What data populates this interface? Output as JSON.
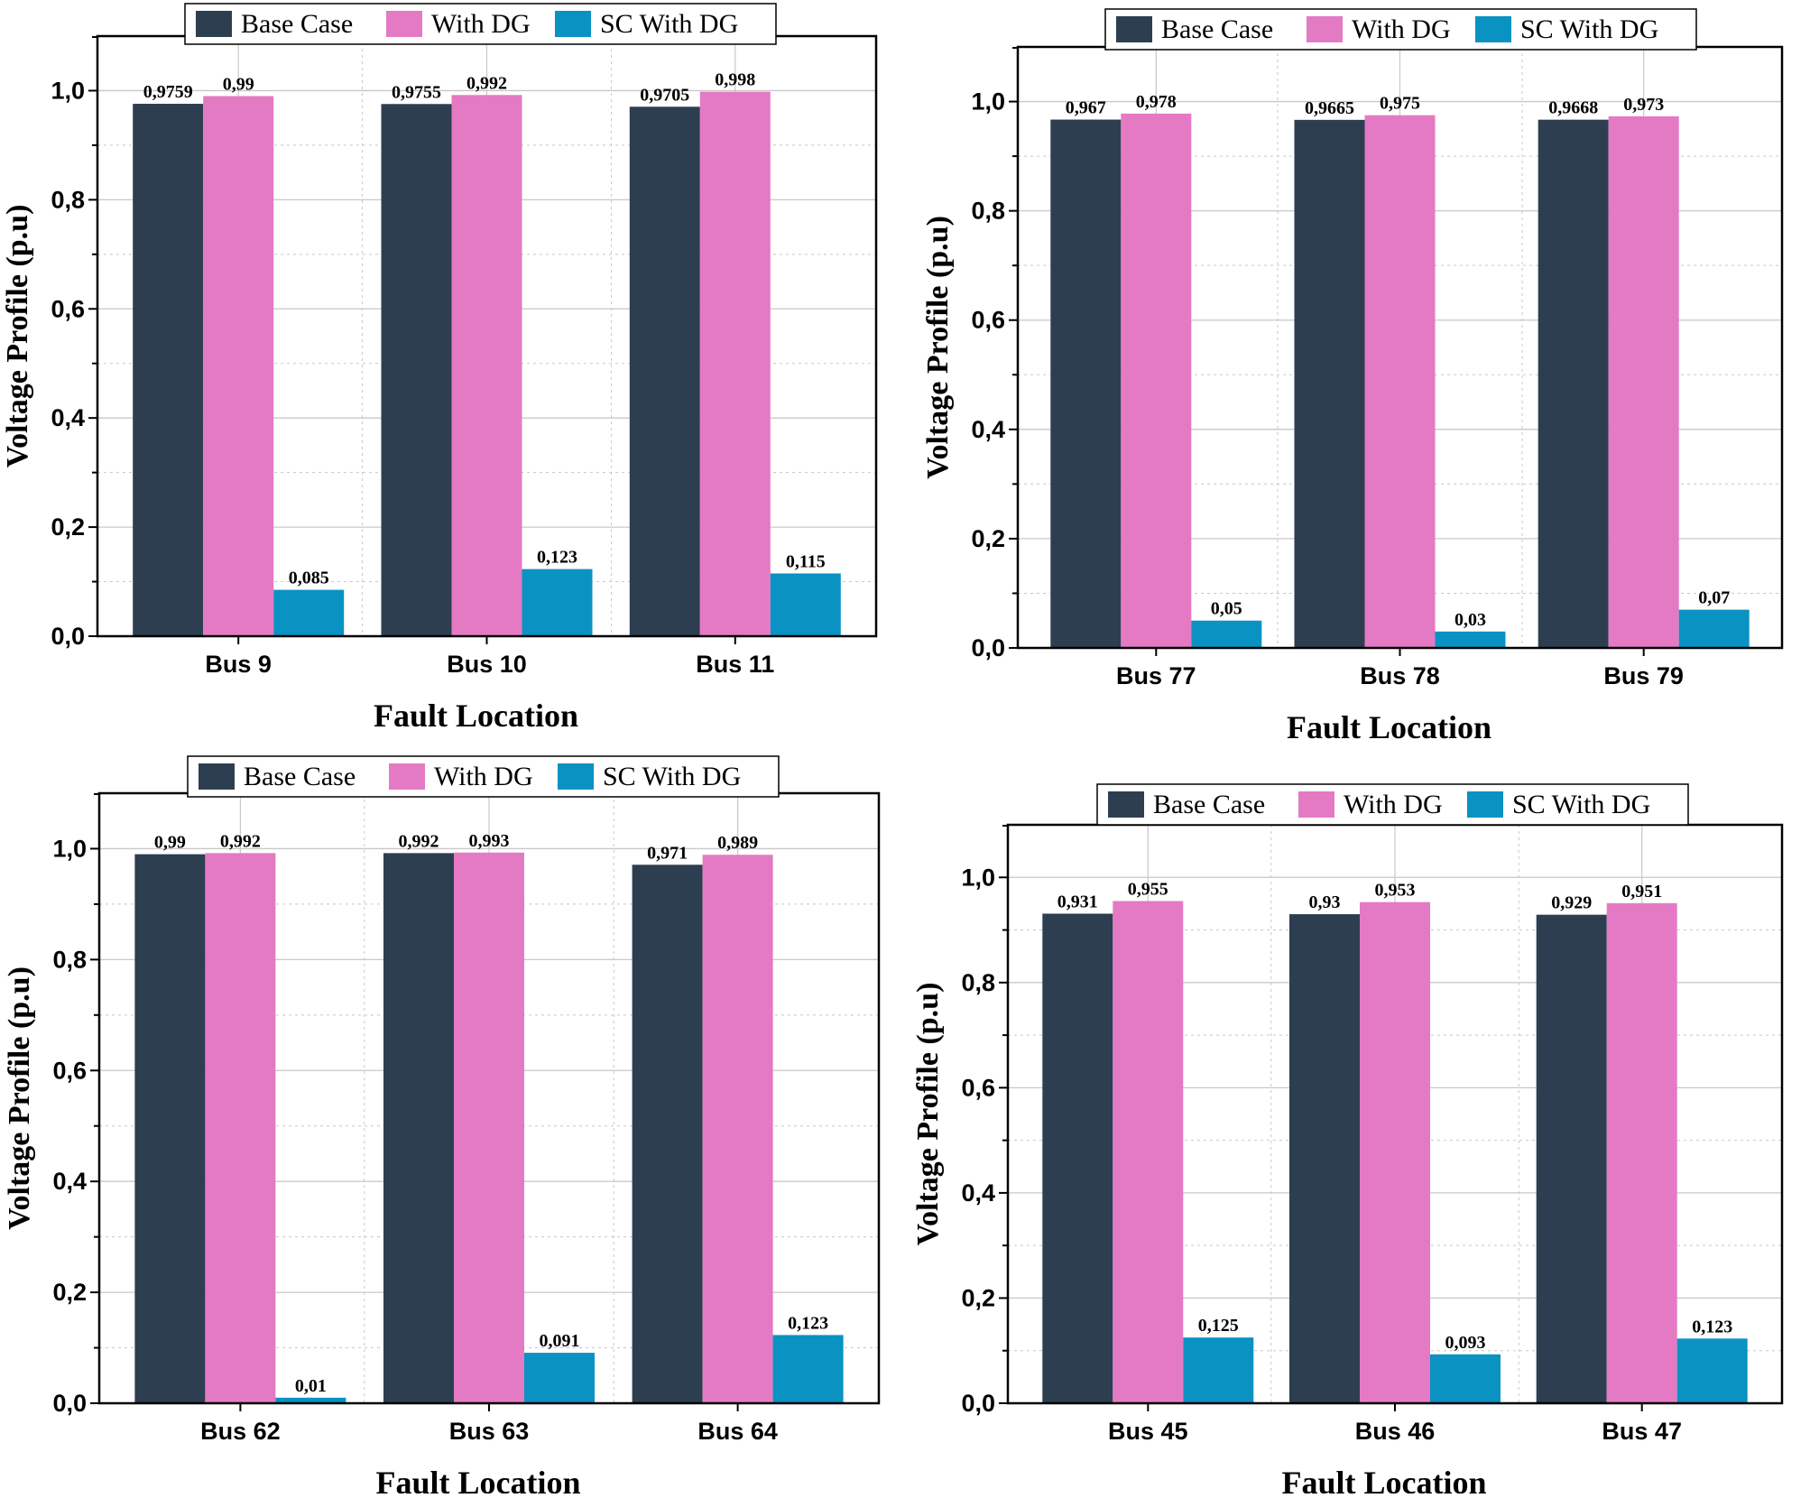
{
  "colors": {
    "base": "#2d3e50",
    "dg": "#e47ac3",
    "sc": "#0a92c2",
    "grid": "#c8c8c8",
    "axis": "#000000"
  },
  "legend_labels": [
    "Base Case",
    "With DG",
    "SC With DG"
  ],
  "chart_data": [
    {
      "type": "bar",
      "title": "",
      "xlabel": "Fault Location",
      "ylabel": "Voltage Profile (p.u)",
      "ylim": [
        0,
        1.1
      ],
      "yticks": [
        "0,0",
        "0,2",
        "0,4",
        "0,6",
        "0,8",
        "1,0"
      ],
      "legend_position": "top",
      "categories": [
        "Bus 9",
        "Bus 10",
        "Bus 11"
      ],
      "series": [
        {
          "name": "Base Case",
          "values": [
            0.9759,
            0.9755,
            0.9705
          ],
          "labels": [
            "0,9759",
            "0,9755",
            "0,9705"
          ]
        },
        {
          "name": "With DG",
          "values": [
            0.99,
            0.992,
            0.998
          ],
          "labels": [
            "0,99",
            "0,992",
            "0,998"
          ]
        },
        {
          "name": "SC With DG",
          "values": [
            0.085,
            0.123,
            0.115
          ],
          "labels": [
            "0,085",
            "0,123",
            "0,115"
          ]
        }
      ]
    },
    {
      "type": "bar",
      "title": "",
      "xlabel": "Fault Location",
      "ylabel": "Voltage Profile (p.u)",
      "ylim": [
        0,
        1.1
      ],
      "yticks": [
        "0,0",
        "0,2",
        "0,4",
        "0,6",
        "0,8",
        "1,0"
      ],
      "legend_position": "top",
      "categories": [
        "Bus 77",
        "Bus 78",
        "Bus 79"
      ],
      "series": [
        {
          "name": "Base Case",
          "values": [
            0.967,
            0.9665,
            0.9668
          ],
          "labels": [
            "0,967",
            "0,9665",
            "0,9668"
          ]
        },
        {
          "name": "With DG",
          "values": [
            0.978,
            0.975,
            0.973
          ],
          "labels": [
            "0,978",
            "0,975",
            "0,973"
          ]
        },
        {
          "name": "SC With DG",
          "values": [
            0.05,
            0.03,
            0.07
          ],
          "labels": [
            "0,05",
            "0,03",
            "0,07"
          ]
        }
      ]
    },
    {
      "type": "bar",
      "title": "",
      "xlabel": "Fault Location",
      "ylabel": "Voltage Profile (p.u)",
      "ylim": [
        0,
        1.1
      ],
      "yticks": [
        "0,0",
        "0,2",
        "0,4",
        "0,6",
        "0,8",
        "1,0"
      ],
      "legend_position": "top",
      "categories": [
        "Bus 62",
        "Bus 63",
        "Bus 64"
      ],
      "series": [
        {
          "name": "Base Case",
          "values": [
            0.99,
            0.992,
            0.971
          ],
          "labels": [
            "0,99",
            "0,992",
            "0,971"
          ]
        },
        {
          "name": "With DG",
          "values": [
            0.992,
            0.993,
            0.989
          ],
          "labels": [
            "0,992",
            "0,993",
            "0,989"
          ]
        },
        {
          "name": "SC With DG",
          "values": [
            0.01,
            0.091,
            0.123
          ],
          "labels": [
            "0,01",
            "0,091",
            "0,123"
          ]
        }
      ]
    },
    {
      "type": "bar",
      "title": "",
      "xlabel": "Fault Location",
      "ylabel": "Voltage Profile (p.u)",
      "ylim": [
        0,
        1.1
      ],
      "yticks": [
        "0,0",
        "0,2",
        "0,4",
        "0,6",
        "0,8",
        "1,0"
      ],
      "legend_position": "top",
      "categories": [
        "Bus 45",
        "Bus 46",
        "Bus 47"
      ],
      "series": [
        {
          "name": "Base Case",
          "values": [
            0.931,
            0.93,
            0.929
          ],
          "labels": [
            "0,931",
            "0,93",
            "0,929"
          ]
        },
        {
          "name": "With DG",
          "values": [
            0.955,
            0.953,
            0.951
          ],
          "labels": [
            "0,955",
            "0,953",
            "0,951"
          ]
        },
        {
          "name": "SC With DG",
          "values": [
            0.125,
            0.093,
            0.123
          ],
          "labels": [
            "0,125",
            "0,093",
            "0,123"
          ]
        }
      ]
    }
  ]
}
